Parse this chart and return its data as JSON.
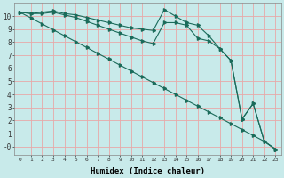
{
  "xlabel": "Humidex (Indice chaleur)",
  "bg_color": "#c8eaea",
  "grid_color": "#e8a8a8",
  "line_color": "#1a6b5a",
  "xlim": [
    -0.5,
    23.5
  ],
  "ylim": [
    -0.6,
    11.0
  ],
  "yticks": [
    0,
    1,
    2,
    3,
    4,
    5,
    6,
    7,
    8,
    9,
    10
  ],
  "ytick_labels": [
    "-0",
    "1",
    "2",
    "3",
    "4",
    "5",
    "6",
    "7",
    "8",
    "9",
    "10"
  ],
  "xticks": [
    0,
    1,
    2,
    3,
    4,
    5,
    6,
    7,
    8,
    9,
    10,
    11,
    12,
    13,
    14,
    15,
    16,
    17,
    18,
    19,
    20,
    21,
    22,
    23
  ],
  "line1_x": [
    0,
    1,
    2,
    3,
    4,
    5,
    6,
    7,
    8,
    9,
    10,
    11,
    12,
    13,
    14,
    15,
    16,
    17,
    18,
    19,
    20,
    21,
    22,
    23
  ],
  "line1_y": [
    10.3,
    10.2,
    10.3,
    10.4,
    10.2,
    10.1,
    9.9,
    9.7,
    9.5,
    9.3,
    9.1,
    9.0,
    8.9,
    10.5,
    10.0,
    9.5,
    9.3,
    8.5,
    7.5,
    6.6,
    2.1,
    3.3,
    0.4,
    -0.2
  ],
  "line2_x": [
    0,
    1,
    2,
    3,
    4,
    5,
    6,
    7,
    8,
    9,
    10,
    11,
    12,
    13,
    14,
    15,
    16,
    17,
    18,
    19,
    20,
    21,
    22,
    23
  ],
  "line2_y": [
    10.3,
    10.2,
    10.2,
    10.3,
    10.1,
    9.9,
    9.6,
    9.3,
    9.0,
    8.7,
    8.4,
    8.1,
    7.9,
    9.5,
    9.5,
    9.3,
    8.3,
    8.1,
    7.5,
    6.6,
    2.1,
    3.3,
    0.4,
    -0.2
  ],
  "line3_x": [
    0,
    1,
    2,
    3,
    4,
    5,
    6,
    7,
    8,
    9,
    10,
    11,
    12,
    13,
    14,
    15,
    16,
    17,
    18,
    19,
    20,
    21,
    22,
    23
  ],
  "line3_y": [
    10.3,
    9.85,
    9.4,
    8.95,
    8.5,
    8.05,
    7.6,
    7.15,
    6.7,
    6.25,
    5.8,
    5.35,
    4.9,
    4.45,
    4.0,
    3.55,
    3.1,
    2.65,
    2.2,
    1.75,
    1.3,
    0.85,
    0.4,
    -0.2
  ]
}
